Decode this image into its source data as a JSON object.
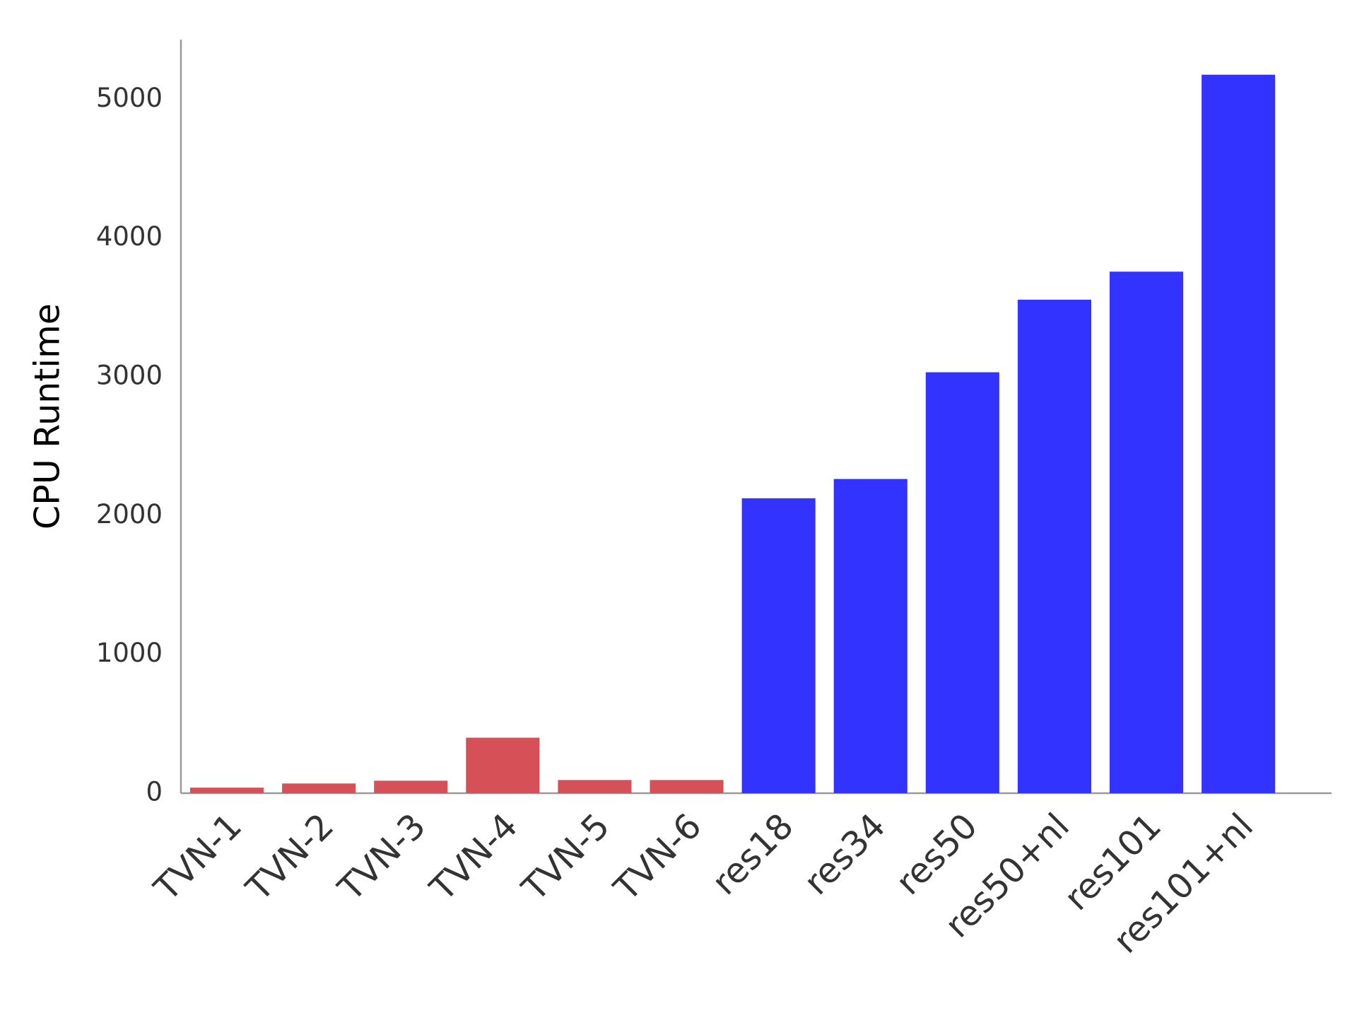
{
  "chart_data": {
    "type": "bar",
    "y_label": "CPU Runtime",
    "categories": [
      "TVN-1",
      "TVN-2",
      "TVN-3",
      "TVN-4",
      "TVN-5",
      "TVN-6",
      "res18",
      "res34",
      "res50",
      "res50+nl",
      "res101",
      "res101+nl"
    ],
    "values": [
      40,
      70,
      90,
      400,
      95,
      95,
      2125,
      2264,
      3033,
      3556,
      3758,
      5177
    ],
    "colors": [
      "#d65157",
      "#d65157",
      "#d65157",
      "#d65157",
      "#d65157",
      "#d65157",
      "#3333ff",
      "#3333ff",
      "#3333ff",
      "#3333ff",
      "#3333ff",
      "#3333ff"
    ],
    "ylim": [
      0,
      5430
    ],
    "yticks": [
      0,
      1000,
      2000,
      3000,
      4000,
      5000
    ],
    "grid": false
  }
}
